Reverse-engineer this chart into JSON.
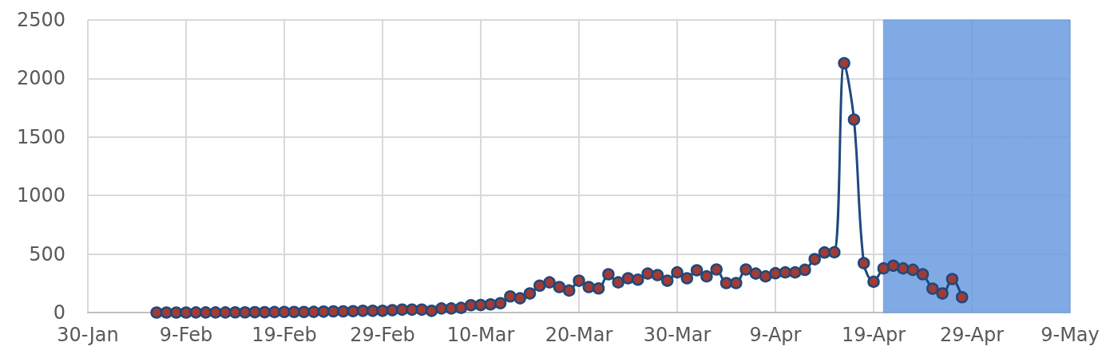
{
  "chart_data": {
    "type": "line",
    "x": [
      "--02-06",
      "--02-07",
      "--02-08",
      "--02-09",
      "--02-10",
      "--02-11",
      "--02-12",
      "--02-13",
      "--02-14",
      "--02-15",
      "--02-16",
      "--02-17",
      "--02-18",
      "--02-19",
      "--02-20",
      "--02-21",
      "--02-22",
      "--02-23",
      "--02-24",
      "--02-25",
      "--02-26",
      "--02-27",
      "--02-28",
      "--02-29",
      "--03-01",
      "--03-02",
      "--03-03",
      "--03-04",
      "--03-05",
      "--03-06",
      "--03-07",
      "--03-08",
      "--03-09",
      "--03-10",
      "--03-11",
      "--03-12",
      "--03-13",
      "--03-14",
      "--03-15",
      "--03-16",
      "--03-17",
      "--03-18",
      "--03-19",
      "--03-20",
      "--03-21",
      "--03-22",
      "--03-23",
      "--03-24",
      "--03-25",
      "--03-26",
      "--03-27",
      "--03-28",
      "--03-29",
      "--03-30",
      "--03-31",
      "--04-01",
      "--04-02",
      "--04-03",
      "--04-04",
      "--04-05",
      "--04-06",
      "--04-07",
      "--04-08",
      "--04-09",
      "--04-10",
      "--04-11",
      "--04-12",
      "--04-13",
      "--04-14",
      "--04-15",
      "--04-16",
      "--04-17",
      "--04-18",
      "--04-19",
      "--04-20",
      "--04-21",
      "--04-22",
      "--04-23",
      "--04-24",
      "--04-25",
      "--04-26",
      "--04-27",
      "--04-28"
    ],
    "series": [
      {
        "color": "#1f497d",
        "values": [
          0,
          0,
          0,
          0,
          1,
          1,
          1,
          1,
          2,
          2,
          3,
          3,
          4,
          5,
          5,
          5,
          6,
          8,
          10,
          10,
          12,
          15,
          15,
          15,
          20,
          25,
          25,
          25,
          15,
          35,
          35,
          40,
          63,
          65,
          70,
          80,
          138,
          122,
          163,
          230,
          258,
          218,
          188,
          272,
          218,
          206,
          327,
          258,
          293,
          281,
          333,
          320,
          272,
          343,
          293,
          361,
          309,
          368,
          252,
          252,
          368,
          333,
          309,
          336,
          343,
          343,
          365,
          456,
          513,
          515,
          2130,
          1648,
          422,
          263,
          377,
          400,
          377,
          365,
          327,
          204,
          163,
          286,
          131
        ]
      }
    ],
    "xlim": [
      "--01-30",
      "--05-09"
    ],
    "xticks": [
      {
        "value": "--01-30",
        "label": "30-Jan"
      },
      {
        "value": "--02-09",
        "label": "9-Feb"
      },
      {
        "value": "--02-19",
        "label": "19-Feb"
      },
      {
        "value": "--02-29",
        "label": "29-Feb"
      },
      {
        "value": "--03-10",
        "label": "10-Mar"
      },
      {
        "value": "--03-20",
        "label": "20-Mar"
      },
      {
        "value": "--03-30",
        "label": "30-Mar"
      },
      {
        "value": "--04-09",
        "label": "9-Apr"
      },
      {
        "value": "--04-19",
        "label": "19-Apr"
      },
      {
        "value": "--04-29",
        "label": "29-Apr"
      },
      {
        "value": "--05-09",
        "label": "9-May"
      }
    ],
    "ylim": [
      0,
      2500
    ],
    "yticks": [
      0,
      500,
      1000,
      1500,
      2000,
      2500
    ],
    "bands": [
      {
        "axis": "x",
        "from": "--04-20",
        "to": "--05-09",
        "color": "#6a9be0"
      }
    ],
    "grid": true,
    "marker": "circle",
    "line_style": "solid"
  }
}
